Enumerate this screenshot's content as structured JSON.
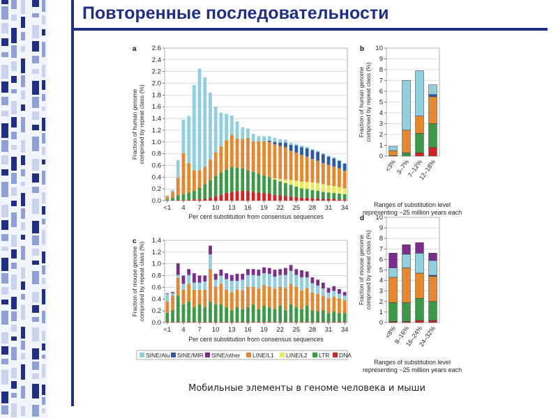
{
  "slide": {
    "title": "Повторенные последовательности",
    "caption": "Мобильные элементы в геноме человека и мыши",
    "title_color": "#1f2f86"
  },
  "legend": [
    {
      "key": "sine_alu",
      "label": "SINE/Alu",
      "color": "#8fcfe0"
    },
    {
      "key": "sine_mir",
      "label": "SINE/MIR",
      "color": "#2a5aa8"
    },
    {
      "key": "sine_other",
      "label": "SINE/other",
      "color": "#7b2d8e"
    },
    {
      "key": "line_l1",
      "label": "LINE/L1",
      "color": "#e8862c"
    },
    {
      "key": "line_l2",
      "label": "LINE/L2",
      "color": "#ecec50"
    },
    {
      "key": "ltr",
      "label": "LTR",
      "color": "#3a9a45"
    },
    {
      "key": "dna",
      "label": "DNA",
      "color": "#d92020"
    }
  ],
  "chart_data": [
    {
      "panel": "a",
      "type": "bar",
      "stacked": true,
      "ylabel": "Fraction of human genome comprised by repeat class (%)",
      "xlabel": "Per cent substitution from consensus sequences",
      "ylim": [
        0,
        2.6
      ],
      "yticks": [
        "0.0",
        "0.2",
        "0.4",
        "0.6",
        "0.8",
        "1.0",
        "1.2",
        "1.4",
        "1.6",
        "1.8",
        "2.0",
        "2.2",
        "2.4",
        "2.6"
      ],
      "xtick_labels": [
        "<1",
        "4",
        "7",
        "10",
        "13",
        "16",
        "19",
        "22",
        "25",
        "28",
        "31",
        "34"
      ],
      "categories": [
        "<1",
        "2",
        "3",
        "4",
        "5",
        "6",
        "7",
        "8",
        "9",
        "10",
        "11",
        "12",
        "13",
        "14",
        "15",
        "16",
        "17",
        "18",
        "19",
        "20",
        "21",
        "22",
        "23",
        "24",
        "25",
        "26",
        "27",
        "28",
        "29",
        "30",
        "31",
        "32",
        "33",
        "34"
      ],
      "series": [
        {
          "key": "dna",
          "values": [
            0,
            0,
            0.01,
            0.01,
            0.01,
            0.02,
            0.02,
            0.03,
            0.05,
            0.07,
            0.1,
            0.13,
            0.15,
            0.16,
            0.17,
            0.16,
            0.15,
            0.14,
            0.13,
            0.12,
            0.1,
            0.09,
            0.08,
            0.07,
            0.06,
            0.05,
            0.05,
            0.04,
            0.04,
            0.03,
            0.03,
            0.03,
            0.02,
            0.02
          ]
        },
        {
          "key": "ltr",
          "values": [
            0.02,
            0.05,
            0.08,
            0.1,
            0.13,
            0.15,
            0.2,
            0.25,
            0.3,
            0.35,
            0.38,
            0.4,
            0.42,
            0.4,
            0.38,
            0.36,
            0.34,
            0.32,
            0.3,
            0.28,
            0.26,
            0.24,
            0.22,
            0.2,
            0.18,
            0.16,
            0.15,
            0.14,
            0.13,
            0.12,
            0.11,
            0.1,
            0.1,
            0.09
          ]
        },
        {
          "key": "line_l2",
          "values": [
            0,
            0,
            0,
            0,
            0,
            0,
            0,
            0,
            0,
            0,
            0,
            0,
            0,
            0,
            0,
            0,
            0,
            0,
            0,
            0,
            0.02,
            0.04,
            0.06,
            0.08,
            0.1,
            0.11,
            0.12,
            0.13,
            0.13,
            0.13,
            0.12,
            0.12,
            0.11,
            0.1
          ]
        },
        {
          "key": "line_l1",
          "values": [
            0.05,
            0.1,
            0.3,
            0.7,
            0.5,
            0.35,
            0.3,
            0.3,
            0.35,
            0.4,
            0.45,
            0.5,
            0.55,
            0.5,
            0.5,
            0.55,
            0.52,
            0.55,
            0.58,
            0.6,
            0.58,
            0.56,
            0.55,
            0.5,
            0.48,
            0.46,
            0.43,
            0.4,
            0.38,
            0.36,
            0.35,
            0.33,
            0.32,
            0.3
          ]
        },
        {
          "key": "sine_mir",
          "values": [
            0,
            0,
            0,
            0,
            0,
            0,
            0,
            0,
            0,
            0,
            0,
            0,
            0,
            0,
            0,
            0,
            0,
            0,
            0,
            0.02,
            0.04,
            0.06,
            0.08,
            0.1,
            0.12,
            0.13,
            0.14,
            0.15,
            0.15,
            0.15,
            0.14,
            0.14,
            0.13,
            0.12
          ]
        },
        {
          "key": "sine_other",
          "values": [
            0,
            0,
            0,
            0,
            0,
            0,
            0,
            0,
            0,
            0,
            0,
            0,
            0,
            0,
            0,
            0,
            0,
            0,
            0,
            0,
            0,
            0,
            0,
            0,
            0,
            0,
            0,
            0,
            0,
            0,
            0,
            0,
            0,
            0
          ]
        },
        {
          "key": "sine_alu",
          "values": [
            0.02,
            0.03,
            0.3,
            0.57,
            0.8,
            1.45,
            1.73,
            1.52,
            1.14,
            0.78,
            0.57,
            0.45,
            0.33,
            0.29,
            0.2,
            0.16,
            0.13,
            0.09,
            0.09,
            0.08,
            0.07,
            0.06,
            0.05,
            0.04,
            0.03,
            0.03,
            0.03,
            0.02,
            0.02,
            0.02,
            0.02,
            0.02,
            0.01,
            0.01
          ]
        }
      ]
    },
    {
      "panel": "b",
      "type": "bar",
      "stacked": true,
      "ylabel": "Fraction of human genome comprised by repeat class (%)",
      "xlabel": "Ranges of substitution level representing ~25 million years each",
      "ylim": [
        0,
        10
      ],
      "yticks": [
        "0",
        "1",
        "2",
        "3",
        "4",
        "5",
        "6",
        "7",
        "8",
        "9",
        "10"
      ],
      "categories": [
        "<3%",
        "3–7%",
        "7–12%",
        "12–18%"
      ],
      "series": [
        {
          "key": "dna",
          "values": [
            0,
            0,
            0.3,
            0.8
          ]
        },
        {
          "key": "ltr",
          "values": [
            0.05,
            0.3,
            1.8,
            2.2
          ]
        },
        {
          "key": "line_l1",
          "values": [
            0.45,
            2.1,
            1.6,
            2.5
          ]
        },
        {
          "key": "sine_mir",
          "values": [
            0,
            0,
            0,
            0.2
          ]
        },
        {
          "key": "sine_alu",
          "values": [
            0.4,
            4.6,
            4.2,
            0.9
          ]
        }
      ]
    },
    {
      "panel": "c",
      "type": "bar",
      "stacked": true,
      "ylabel": "Fraction of mouse genome comprised by repeat class (%)",
      "xlabel": "Per cent substitution from consensus sequences",
      "ylim": [
        0,
        1.4
      ],
      "yticks": [
        "0.0",
        "0.2",
        "0.4",
        "0.6",
        "0.8",
        "1.0",
        "1.2",
        "1.4"
      ],
      "xtick_labels": [
        "<1",
        "4",
        "7",
        "10",
        "13",
        "16",
        "19",
        "22",
        "25",
        "28",
        "31",
        "34"
      ],
      "categories": [
        "<1",
        "2",
        "3",
        "4",
        "5",
        "6",
        "7",
        "8",
        "9",
        "10",
        "11",
        "12",
        "13",
        "14",
        "15",
        "16",
        "17",
        "18",
        "19",
        "20",
        "21",
        "22",
        "23",
        "24",
        "25",
        "26",
        "27",
        "28",
        "29",
        "30",
        "31",
        "32",
        "33",
        "34"
      ],
      "series": [
        {
          "key": "dna",
          "values": [
            0.01,
            0.01,
            0.01,
            0.01,
            0.01,
            0.01,
            0.01,
            0.01,
            0.01,
            0.01,
            0.01,
            0.01,
            0.01,
            0.01,
            0.01,
            0.01,
            0.01,
            0.01,
            0.01,
            0.01,
            0.01,
            0.01,
            0.01,
            0.01,
            0.01,
            0.01,
            0.01,
            0.01,
            0.01,
            0.01,
            0.01,
            0.01,
            0.01,
            0.01
          ]
        },
        {
          "key": "ltr",
          "values": [
            0.15,
            0.2,
            0.45,
            0.3,
            0.35,
            0.25,
            0.3,
            0.25,
            0.35,
            0.3,
            0.3,
            0.25,
            0.2,
            0.25,
            0.22,
            0.25,
            0.3,
            0.22,
            0.28,
            0.25,
            0.22,
            0.28,
            0.2,
            0.3,
            0.25,
            0.22,
            0.28,
            0.2,
            0.18,
            0.2,
            0.15,
            0.18,
            0.15,
            0.15
          ]
        },
        {
          "key": "line_l1",
          "values": [
            0.2,
            0.25,
            0.3,
            0.25,
            0.3,
            0.3,
            0.25,
            0.3,
            0.55,
            0.3,
            0.35,
            0.3,
            0.3,
            0.3,
            0.32,
            0.35,
            0.3,
            0.35,
            0.35,
            0.35,
            0.35,
            0.32,
            0.38,
            0.35,
            0.35,
            0.32,
            0.3,
            0.3,
            0.3,
            0.25,
            0.25,
            0.25,
            0.25,
            0.22
          ]
        },
        {
          "key": "sine_mir",
          "values": [
            0,
            0,
            0,
            0,
            0,
            0,
            0,
            0,
            0,
            0,
            0,
            0,
            0,
            0,
            0,
            0,
            0,
            0,
            0,
            0,
            0,
            0,
            0,
            0,
            0,
            0,
            0,
            0,
            0,
            0,
            0,
            0,
            0,
            0
          ]
        },
        {
          "key": "sine_alu",
          "values": [
            0.13,
            0.04,
            0.05,
            0.1,
            0.15,
            0.12,
            0.12,
            0.14,
            0.25,
            0.12,
            0.14,
            0.18,
            0.2,
            0.15,
            0.18,
            0.2,
            0.2,
            0.22,
            0.2,
            0.22,
            0.2,
            0.2,
            0.22,
            0.22,
            0.2,
            0.22,
            0.18,
            0.16,
            0.14,
            0.12,
            0.1,
            0.1,
            0.08,
            0.08
          ]
        },
        {
          "key": "sine_other",
          "values": [
            0.01,
            0.02,
            0.2,
            0.14,
            0.1,
            0.16,
            0.12,
            0.1,
            0.15,
            0.1,
            0.1,
            0.1,
            0.1,
            0.12,
            0.1,
            0.1,
            0.1,
            0.1,
            0.1,
            0.1,
            0.12,
            0.1,
            0.12,
            0.1,
            0.1,
            0.12,
            0.1,
            0.1,
            0.1,
            0.1,
            0.08,
            0.08,
            0.08,
            0.06
          ]
        }
      ]
    },
    {
      "panel": "d",
      "type": "bar",
      "stacked": true,
      "ylabel": "Fraction of mouse genome comprised by repeat class (%)",
      "xlabel": "Ranges of substitution level representing ~25 million years each",
      "ylim": [
        0,
        10
      ],
      "yticks": [
        "0",
        "1",
        "2",
        "3",
        "4",
        "5",
        "6",
        "7",
        "8",
        "9",
        "10"
      ],
      "categories": [
        "<8%",
        "8–16%",
        "16–24%",
        "24–32%"
      ],
      "series": [
        {
          "key": "dna",
          "values": [
            0.1,
            0.1,
            0.2,
            0.2
          ]
        },
        {
          "key": "ltr",
          "values": [
            1.8,
            1.8,
            2.1,
            1.8
          ]
        },
        {
          "key": "line_l1",
          "values": [
            2.4,
            3.3,
            2.4,
            2.4
          ]
        },
        {
          "key": "sine_mir",
          "values": [
            0,
            0,
            0,
            0.1
          ]
        },
        {
          "key": "sine_alu",
          "values": [
            0.9,
            1.3,
            1.9,
            1.4
          ]
        },
        {
          "key": "sine_other",
          "values": [
            1.4,
            0.9,
            1.0,
            0.7
          ]
        }
      ]
    }
  ]
}
